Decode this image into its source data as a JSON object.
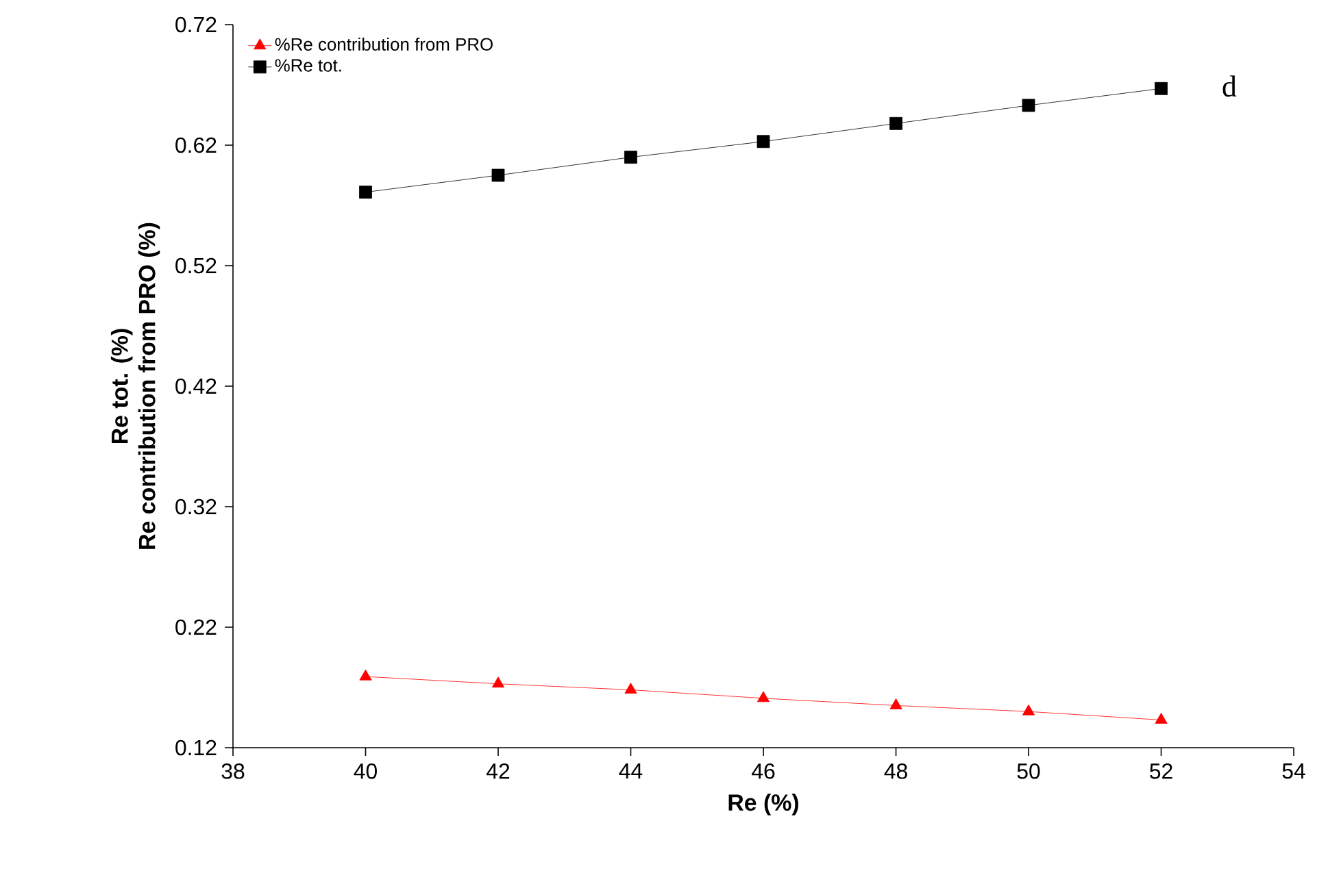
{
  "chart_data": {
    "type": "line",
    "xlabel": "Re (%)",
    "ylabel": [
      "Re tot. (%)",
      "Re contribution from PRO (%)"
    ],
    "annotations": [
      "d"
    ],
    "x": [
      40,
      42,
      44,
      46,
      48,
      50,
      52
    ],
    "series": [
      {
        "name": "%Re contribution from PRO",
        "color": "#ff0000",
        "marker": "triangle",
        "values": [
          0.179,
          0.173,
          0.168,
          0.161,
          0.155,
          0.15,
          0.143
        ]
      },
      {
        "name": "%Re tot.",
        "color": "#000000",
        "marker": "square",
        "values": [
          0.581,
          0.595,
          0.61,
          0.623,
          0.638,
          0.653,
          0.667
        ]
      }
    ],
    "xlim": [
      38,
      54
    ],
    "xticks": [
      38,
      40,
      42,
      44,
      46,
      48,
      50,
      52,
      54
    ],
    "ylim": [
      0.12,
      0.72
    ],
    "yticks": [
      0.12,
      0.22,
      0.32,
      0.42,
      0.52,
      0.62,
      0.72
    ],
    "grid": false,
    "legend": "top left",
    "line_style": "solid"
  }
}
